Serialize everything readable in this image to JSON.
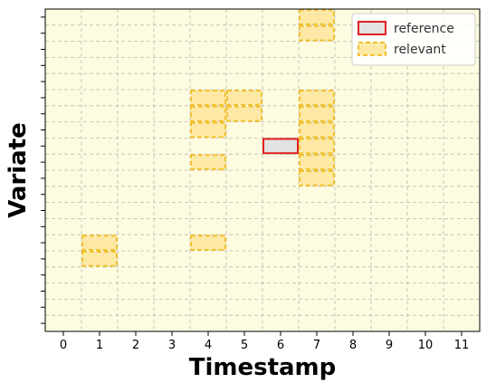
{
  "chart_data": {
    "type": "heatmap",
    "title": "",
    "xlabel": "Timestamp",
    "ylabel": "Variate",
    "x_ticks": [
      0,
      1,
      2,
      3,
      4,
      5,
      6,
      7,
      8,
      9,
      10,
      11
    ],
    "xlim": [
      0,
      12
    ],
    "ylim": [
      0,
      20
    ],
    "grid": true,
    "legend_position": "top-right",
    "colors": {
      "background": "#fefce0",
      "grid": "#b9b9b9",
      "reference_fill": "#e2e2e2",
      "reference_edge": "#e02020",
      "relevant_fill": "#fde9a5",
      "relevant_edge": "#f2c12e"
    },
    "series": [
      {
        "name": "reference",
        "cells": [
          {
            "x": 6,
            "y": 8
          }
        ]
      },
      {
        "name": "relevant",
        "cells": [
          {
            "x": 7,
            "y": 0
          },
          {
            "x": 7,
            "y": 1
          },
          {
            "x": 4,
            "y": 5
          },
          {
            "x": 5,
            "y": 5
          },
          {
            "x": 7,
            "y": 5
          },
          {
            "x": 4,
            "y": 6
          },
          {
            "x": 5,
            "y": 6
          },
          {
            "x": 7,
            "y": 6
          },
          {
            "x": 4,
            "y": 7
          },
          {
            "x": 7,
            "y": 7
          },
          {
            "x": 7,
            "y": 8
          },
          {
            "x": 4,
            "y": 9
          },
          {
            "x": 7,
            "y": 9
          },
          {
            "x": 7,
            "y": 10
          },
          {
            "x": 1,
            "y": 14
          },
          {
            "x": 4,
            "y": 14
          },
          {
            "x": 1,
            "y": 15
          }
        ]
      }
    ]
  }
}
